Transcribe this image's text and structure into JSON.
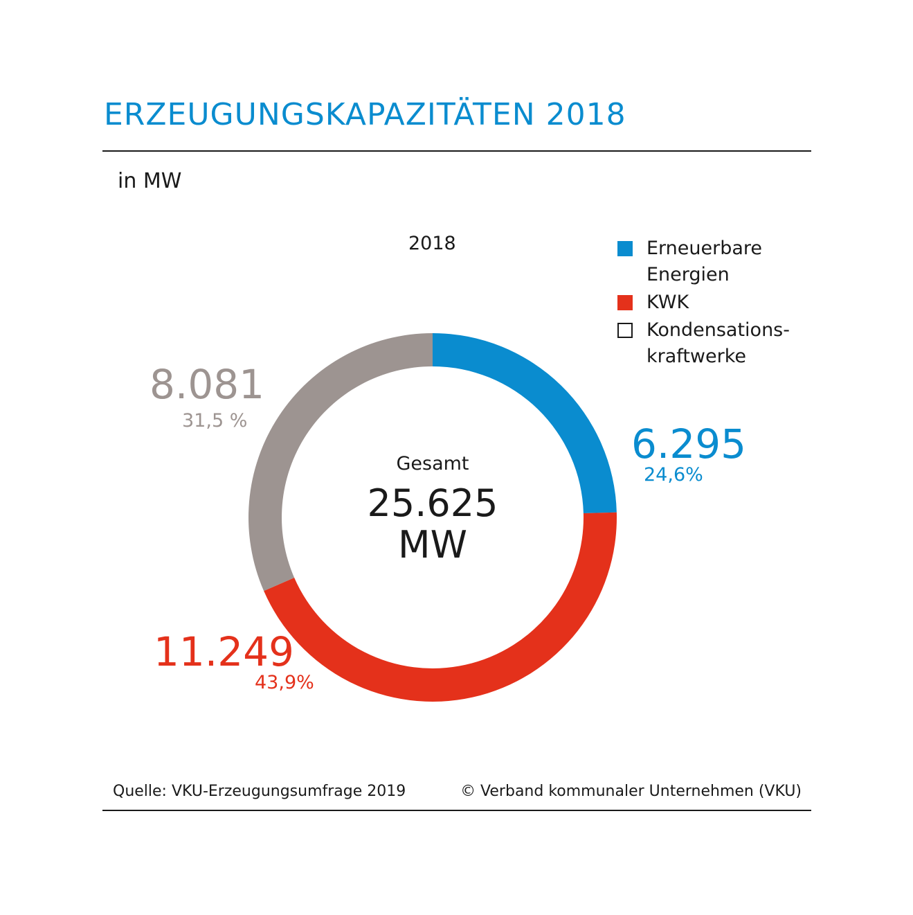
{
  "header": {
    "title": "ERZEUGUNGSKAPAZITÄTEN 2018",
    "unit": "in MW"
  },
  "chart_data": {
    "type": "pie",
    "title": "2018",
    "total_label": "Gesamt",
    "total_value": "25.625",
    "total_unit": "MW",
    "slices": [
      {
        "name": "Erneuerbare Energien",
        "value": 6295,
        "value_label": "6.295",
        "percent_label": "24,6%",
        "color": "#0a8ccf"
      },
      {
        "name": "KWK",
        "value": 11249,
        "value_label": "11.249",
        "percent_label": "43,9%",
        "color": "#e4311b"
      },
      {
        "name": "Kondensationskraftwerke",
        "value": 8081,
        "value_label": "8.081",
        "percent_label": "31,5 %",
        "color": "#9d9491"
      }
    ],
    "legend": {
      "position": "top-right",
      "items": [
        {
          "label": "Erneuerbare\nEnergien",
          "color": "#0a8ccf"
        },
        {
          "label": "KWK",
          "color": "#e4311b"
        },
        {
          "label": "Kondensations-\nkraftwerke",
          "color": "#ffffff"
        }
      ]
    }
  },
  "footer": {
    "source": "Quelle: VKU-Erzeugungsumfrage 2019",
    "copyright": "© Verband kommunaler Unternehmen (VKU)"
  }
}
